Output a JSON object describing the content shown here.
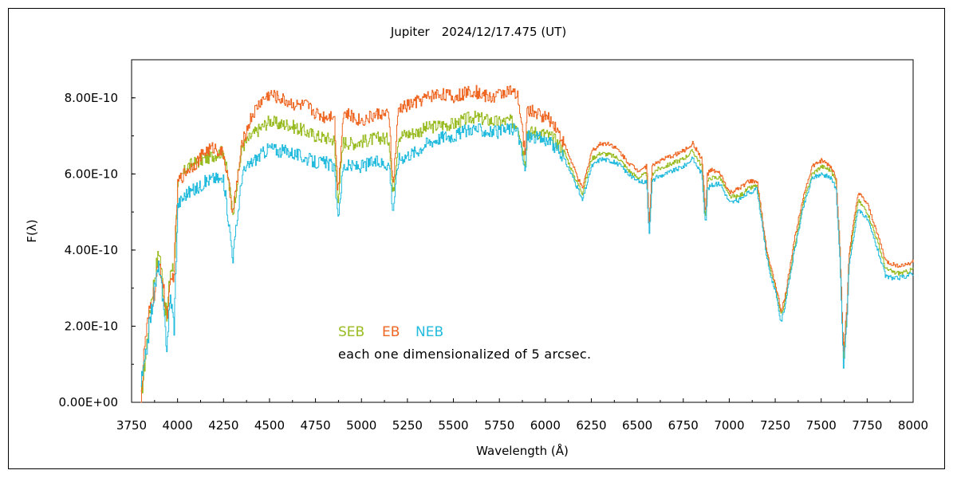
{
  "chart_data": {
    "type": "line",
    "title": "Jupiter　2024/12/17.475 (UT)",
    "xlabel": "Wavelength (Å)",
    "ylabel": "F(λ)",
    "xlim": [
      3750,
      8000
    ],
    "ylim": [
      0,
      9e-10
    ],
    "xticks": [
      "3750",
      "4000",
      "4250",
      "4500",
      "4750",
      "5000",
      "5250",
      "5500",
      "5750",
      "6000",
      "6250",
      "6500",
      "6750",
      "7000",
      "7250",
      "7500",
      "7750",
      "8000"
    ],
    "xtick_values": [
      3750,
      4000,
      4250,
      4500,
      4750,
      5000,
      5250,
      5500,
      5750,
      6000,
      6250,
      6500,
      6750,
      7000,
      7250,
      7500,
      7750,
      8000
    ],
    "yticks": [
      "0.00E+00",
      "2.00E-10",
      "4.00E-10",
      "6.00E-10",
      "8.00E-10"
    ],
    "ytick_values": [
      0,
      2e-10,
      4e-10,
      6e-10,
      8e-10
    ],
    "grid": false,
    "legend_position": "lower-left",
    "annotation": "each one dimensionalized of 5 arcsec.",
    "series": [
      {
        "name": "SEB",
        "color": "#99bb22",
        "x": [
          3800,
          3820,
          3850,
          3880,
          3900,
          3920,
          3940,
          3960,
          3980,
          4000,
          4050,
          4100,
          4150,
          4200,
          4250,
          4300,
          4350,
          4400,
          4450,
          4500,
          4550,
          4600,
          4650,
          4700,
          4750,
          4800,
          4850,
          4870,
          4900,
          4950,
          5000,
          5050,
          5100,
          5150,
          5170,
          5200,
          5250,
          5300,
          5350,
          5400,
          5450,
          5500,
          5550,
          5600,
          5650,
          5700,
          5750,
          5800,
          5850,
          5890,
          5900,
          5950,
          6000,
          6050,
          6100,
          6150,
          6200,
          6250,
          6300,
          6350,
          6400,
          6450,
          6500,
          6550,
          6563,
          6580,
          6600,
          6650,
          6700,
          6750,
          6800,
          6850,
          6870,
          6880,
          6900,
          6950,
          7000,
          7050,
          7100,
          7150,
          7200,
          7220,
          7250,
          7280,
          7300,
          7350,
          7400,
          7450,
          7500,
          7550,
          7580,
          7600,
          7620,
          7640,
          7650,
          7700,
          7750,
          7800,
          7850,
          7900,
          7950,
          8000
        ],
        "y": [
          1e-11,
          1e-10,
          2.5e-10,
          3.5e-10,
          4e-10,
          3e-10,
          2.2e-10,
          3.5e-10,
          3.5e-10,
          5.7e-10,
          6.2e-10,
          6.3e-10,
          6.4e-10,
          6.5e-10,
          6.6e-10,
          5e-10,
          6.7e-10,
          7e-10,
          7.2e-10,
          7.4e-10,
          7.3e-10,
          7.3e-10,
          7.2e-10,
          7.1e-10,
          7e-10,
          6.95e-10,
          6.9e-10,
          5.3e-10,
          6.85e-10,
          6.8e-10,
          6.85e-10,
          6.9e-10,
          6.95e-10,
          6.9e-10,
          5.4e-10,
          7e-10,
          7.05e-10,
          7.1e-10,
          7.2e-10,
          7.25e-10,
          7.3e-10,
          7.3e-10,
          7.4e-10,
          7.5e-10,
          7.45e-10,
          7.4e-10,
          7.35e-10,
          7.4e-10,
          7.3e-10,
          6.3e-10,
          7.1e-10,
          7.1e-10,
          7.05e-10,
          6.9e-10,
          6.6e-10,
          6e-10,
          5.5e-10,
          6.4e-10,
          6.55e-10,
          6.5e-10,
          6.4e-10,
          6.1e-10,
          5.9e-10,
          6e-10,
          4.6e-10,
          6e-10,
          6.1e-10,
          6.2e-10,
          6.3e-10,
          6.4e-10,
          6.6e-10,
          6.2e-10,
          4.8e-10,
          5.8e-10,
          5.9e-10,
          5.9e-10,
          5.4e-10,
          5.4e-10,
          5.6e-10,
          5.7e-10,
          4e-10,
          3.5e-10,
          3e-10,
          2.3e-10,
          2.6e-10,
          4e-10,
          5.2e-10,
          6e-10,
          6.2e-10,
          6.1e-10,
          5.8e-10,
          4e-10,
          1.2e-10,
          2.5e-10,
          3.8e-10,
          5.3e-10,
          5e-10,
          4.3e-10,
          3.5e-10,
          3.4e-10,
          3.4e-10,
          3.5e-10
        ]
      },
      {
        "name": "EB",
        "color": "#ee6622",
        "x": [
          3800,
          3820,
          3850,
          3880,
          3900,
          3920,
          3940,
          3960,
          3980,
          4000,
          4050,
          4100,
          4150,
          4200,
          4250,
          4300,
          4350,
          4400,
          4450,
          4500,
          4550,
          4600,
          4650,
          4700,
          4750,
          4800,
          4850,
          4870,
          4900,
          4950,
          5000,
          5050,
          5100,
          5150,
          5170,
          5200,
          5250,
          5300,
          5350,
          5400,
          5450,
          5500,
          5550,
          5600,
          5650,
          5700,
          5750,
          5800,
          5850,
          5890,
          5900,
          5950,
          6000,
          6050,
          6100,
          6150,
          6200,
          6250,
          6300,
          6350,
          6400,
          6450,
          6500,
          6550,
          6563,
          6580,
          6600,
          6650,
          6700,
          6750,
          6800,
          6850,
          6870,
          6880,
          6900,
          6950,
          7000,
          7050,
          7100,
          7150,
          7200,
          7220,
          7250,
          7280,
          7300,
          7350,
          7400,
          7450,
          7500,
          7550,
          7580,
          7600,
          7620,
          7640,
          7650,
          7700,
          7750,
          7800,
          7850,
          7900,
          7950,
          8000
        ],
        "y": [
          1e-11,
          1.5e-10,
          2.5e-10,
          3e-10,
          3.8e-10,
          3e-10,
          2.3e-10,
          3e-10,
          3.5e-10,
          5.8e-10,
          6.1e-10,
          6.3e-10,
          6.6e-10,
          6.7e-10,
          6.5e-10,
          5e-10,
          6.8e-10,
          7.5e-10,
          7.9e-10,
          8.1e-10,
          8e-10,
          7.9e-10,
          7.8e-10,
          7.8e-10,
          7.6e-10,
          7.5e-10,
          7.6e-10,
          5.5e-10,
          7.6e-10,
          7.5e-10,
          7.4e-10,
          7.5e-10,
          7.6e-10,
          7.5e-10,
          5.6e-10,
          7.7e-10,
          7.8e-10,
          7.9e-10,
          8e-10,
          8.1e-10,
          8.1e-10,
          8e-10,
          8.1e-10,
          8.2e-10,
          8.1e-10,
          8e-10,
          8.1e-10,
          8.2e-10,
          8e-10,
          6.5e-10,
          7.7e-10,
          7.6e-10,
          7.5e-10,
          7.3e-10,
          6.8e-10,
          6.2e-10,
          5.6e-10,
          6.6e-10,
          6.8e-10,
          6.8e-10,
          6.6e-10,
          6.3e-10,
          6.1e-10,
          6.2e-10,
          4.7e-10,
          6.2e-10,
          6.3e-10,
          6.4e-10,
          6.5e-10,
          6.6e-10,
          6.8e-10,
          6.4e-10,
          4.9e-10,
          6e-10,
          6.1e-10,
          6e-10,
          5.5e-10,
          5.6e-10,
          5.8e-10,
          5.8e-10,
          4.1e-10,
          3.6e-10,
          3.1e-10,
          2.4e-10,
          2.7e-10,
          4.2e-10,
          5.4e-10,
          6.2e-10,
          6.35e-10,
          6.2e-10,
          5.9e-10,
          4.1e-10,
          1.3e-10,
          2.6e-10,
          3.9e-10,
          5.5e-10,
          5.2e-10,
          4.5e-10,
          3.7e-10,
          3.6e-10,
          3.6e-10,
          3.7e-10
        ]
      },
      {
        "name": "NEB",
        "color": "#22bbdd",
        "x": [
          3800,
          3820,
          3850,
          3880,
          3900,
          3920,
          3940,
          3960,
          3980,
          4000,
          4050,
          4100,
          4150,
          4200,
          4250,
          4300,
          4350,
          4400,
          4450,
          4500,
          4550,
          4600,
          4650,
          4700,
          4750,
          4800,
          4850,
          4870,
          4900,
          4950,
          5000,
          5050,
          5100,
          5150,
          5170,
          5200,
          5250,
          5300,
          5350,
          5400,
          5450,
          5500,
          5550,
          5600,
          5650,
          5700,
          5750,
          5800,
          5850,
          5890,
          5900,
          5950,
          6000,
          6050,
          6100,
          6150,
          6200,
          6250,
          6300,
          6350,
          6400,
          6450,
          6500,
          6550,
          6563,
          6580,
          6600,
          6650,
          6700,
          6750,
          6800,
          6850,
          6870,
          6880,
          6900,
          6950,
          7000,
          7050,
          7100,
          7150,
          7200,
          7220,
          7250,
          7280,
          7300,
          7350,
          7400,
          7450,
          7500,
          7550,
          7580,
          7600,
          7620,
          7640,
          7650,
          7700,
          7750,
          7800,
          7850,
          7900,
          7950,
          8000
        ],
        "y": [
          5e-11,
          1e-10,
          2.2e-10,
          3.2e-10,
          3.6e-10,
          2.5e-10,
          1.5e-10,
          2.8e-10,
          2e-10,
          5.2e-10,
          5.5e-10,
          5.6e-10,
          5.8e-10,
          5.9e-10,
          5.8e-10,
          3.8e-10,
          6e-10,
          6.3e-10,
          6.5e-10,
          6.7e-10,
          6.6e-10,
          6.6e-10,
          6.5e-10,
          6.4e-10,
          6.3e-10,
          6.3e-10,
          6.2e-10,
          4.8e-10,
          6.2e-10,
          6.2e-10,
          6.2e-10,
          6.3e-10,
          6.3e-10,
          6.25e-10,
          5e-10,
          6.4e-10,
          6.5e-10,
          6.6e-10,
          6.8e-10,
          6.9e-10,
          7e-10,
          7e-10,
          7.1e-10,
          7.2e-10,
          7.15e-10,
          7.1e-10,
          7.1e-10,
          7.2e-10,
          7.1e-10,
          6e-10,
          7e-10,
          6.95e-10,
          6.9e-10,
          6.7e-10,
          6.4e-10,
          5.9e-10,
          5.3e-10,
          6.2e-10,
          6.4e-10,
          6.35e-10,
          6.25e-10,
          6e-10,
          5.8e-10,
          5.8e-10,
          4.4e-10,
          5.8e-10,
          5.9e-10,
          6e-10,
          6.1e-10,
          6.2e-10,
          6.4e-10,
          6e-10,
          4.6e-10,
          5.6e-10,
          5.7e-10,
          5.75e-10,
          5.25e-10,
          5.3e-10,
          5.5e-10,
          5.6e-10,
          3.9e-10,
          3.4e-10,
          2.9e-10,
          2.1e-10,
          2.5e-10,
          3.9e-10,
          5.1e-10,
          5.9e-10,
          6e-10,
          5.9e-10,
          5.6e-10,
          3.8e-10,
          9e-11,
          2.3e-10,
          3.6e-10,
          5.1e-10,
          4.8e-10,
          4.1e-10,
          3.3e-10,
          3.25e-10,
          3.3e-10,
          3.4e-10
        ]
      }
    ]
  }
}
